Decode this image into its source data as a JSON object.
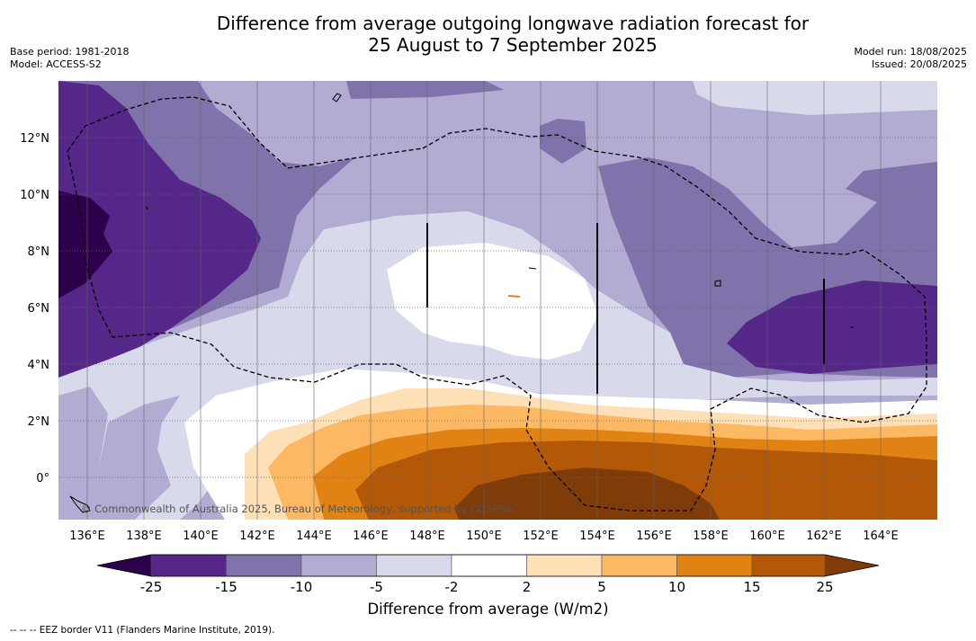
{
  "title_line1": "Difference from average outgoing longwave radiation forecast for",
  "title_line2": "25 August to 7 September 2025",
  "meta_left": {
    "base_period": "Base period: 1981-2018",
    "model": "Model: ACCESS-S2"
  },
  "meta_right": {
    "model_run": "Model run: 18/08/2025",
    "issued": "Issued: 20/08/2025"
  },
  "lon_ticks": [
    "136°E",
    "138°E",
    "140°E",
    "142°E",
    "144°E",
    "146°E",
    "148°E",
    "150°E",
    "152°E",
    "154°E",
    "156°E",
    "158°E",
    "160°E",
    "162°E",
    "164°E"
  ],
  "lat_ticks": [
    "12°N",
    "10°N",
    "8°N",
    "6°N",
    "4°N",
    "2°N",
    "0°"
  ],
  "copyright": "© Commonwealth of Australia 2025, Bureau of Meteorology, supported by COSPPac",
  "colorbar": {
    "title": "Difference from average (W/m2)",
    "labels": [
      "-25",
      "-15",
      "-10",
      "-5",
      "-2",
      "2",
      "5",
      "10",
      "15",
      "25"
    ],
    "colors": [
      "#2d004b",
      "#542788",
      "#8073ac",
      "#b2abd2",
      "#d8daeb",
      "#ffffff",
      "#fee0b6",
      "#fdb863",
      "#e08214",
      "#b35806",
      "#7f3b08"
    ]
  },
  "footnote": "--  --  -- EEZ border V11 (Flanders Marine Institute, 2019)."
}
